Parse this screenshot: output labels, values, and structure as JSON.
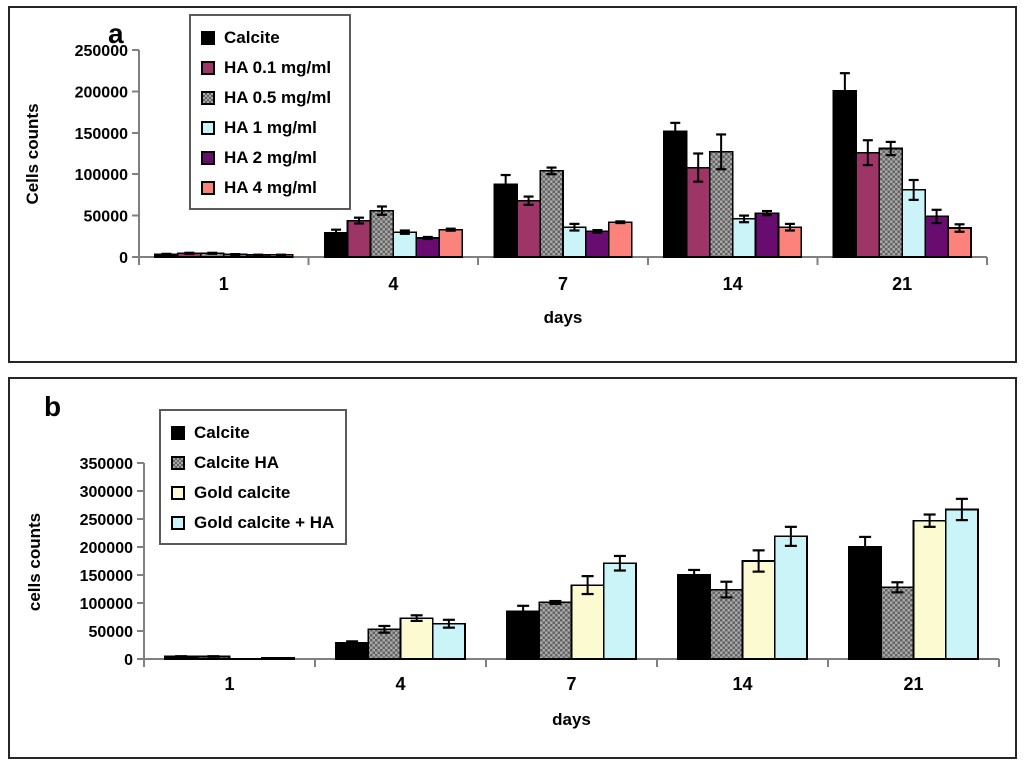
{
  "figure": {
    "background": "#FFFFFF",
    "panel_border_color": "#262626",
    "axis_color": "#808080",
    "text_color": "#000000",
    "error_bar_color": "#000000"
  },
  "chart_data": [
    {
      "type": "bar",
      "panel_label": "a",
      "ylabel": "Cells counts",
      "xlabel": "days",
      "categories": [
        "1",
        "4",
        "7",
        "14",
        "21"
      ],
      "ylim": [
        0,
        250000
      ],
      "yticks": [
        0,
        50000,
        100000,
        150000,
        200000,
        250000
      ],
      "grid": false,
      "legend_position": "inside-top-left",
      "error_bars": true,
      "series": [
        {
          "name": "Calcite",
          "color": "#000000",
          "pattern": "solid",
          "values": [
            3000,
            29000,
            88000,
            152000,
            201000
          ],
          "errors": [
            800,
            4000,
            11000,
            10000,
            21000
          ]
        },
        {
          "name": "HA 0.1 mg/ml",
          "color": "#9D3567",
          "pattern": "solid",
          "values": [
            4500,
            44000,
            68000,
            108000,
            126000
          ],
          "errors": [
            600,
            3500,
            5000,
            17000,
            15000
          ]
        },
        {
          "name": "HA 0.5 mg/ml",
          "color": "#A8A8A8",
          "pattern": "checker",
          "pattern_color": "#636363",
          "values": [
            4500,
            56000,
            104000,
            127000,
            131000
          ],
          "errors": [
            600,
            5000,
            4000,
            21000,
            8000
          ]
        },
        {
          "name": "HA 1 mg/ml",
          "color": "#CAF4F8",
          "pattern": "solid",
          "values": [
            3000,
            30000,
            36000,
            46000,
            81000
          ],
          "errors": [
            500,
            2000,
            4000,
            4000,
            12000
          ]
        },
        {
          "name": "HA 2 mg/ml",
          "color": "#690C70",
          "pattern": "solid",
          "values": [
            2500,
            23000,
            31000,
            53000,
            49000
          ],
          "errors": [
            300,
            1200,
            1500,
            2500,
            8000
          ]
        },
        {
          "name": "HA 4 mg/ml",
          "color": "#FB837B",
          "pattern": "solid",
          "values": [
            2500,
            33000,
            42000,
            36000,
            35000
          ],
          "errors": [
            300,
            1200,
            1000,
            4000,
            4500
          ]
        }
      ]
    },
    {
      "type": "bar",
      "panel_label": "b",
      "ylabel": "cells counts",
      "xlabel": "days",
      "categories": [
        "1",
        "4",
        "7",
        "14",
        "21"
      ],
      "ylim": [
        0,
        350000
      ],
      "yticks": [
        0,
        50000,
        100000,
        150000,
        200000,
        250000,
        300000,
        350000
      ],
      "grid": false,
      "legend_position": "inside-top-left",
      "error_bars": true,
      "series": [
        {
          "name": "Calcite",
          "color": "#000000",
          "pattern": "solid",
          "values": [
            4500,
            29000,
            85000,
            150000,
            200000
          ],
          "errors": [
            500,
            2500,
            10000,
            9000,
            18000
          ]
        },
        {
          "name": "Calcite HA",
          "color": "#A8A8A8",
          "pattern": "checker",
          "pattern_color": "#636363",
          "values": [
            4500,
            53000,
            101000,
            124000,
            128000
          ],
          "errors": [
            500,
            6000,
            2500,
            14000,
            9000
          ]
        },
        {
          "name": "Gold calcite",
          "color": "#FBFAD0",
          "pattern": "solid",
          "values": [
            500,
            73000,
            132000,
            175000,
            247000
          ],
          "errors": [
            0,
            5000,
            16000,
            19000,
            11000
          ]
        },
        {
          "name": "Gold calcite + HA",
          "color": "#CAF4F8",
          "pattern": "solid",
          "values": [
            2000,
            63000,
            171000,
            219000,
            267000
          ],
          "errors": [
            0,
            7000,
            13000,
            17000,
            19000
          ]
        }
      ]
    }
  ]
}
